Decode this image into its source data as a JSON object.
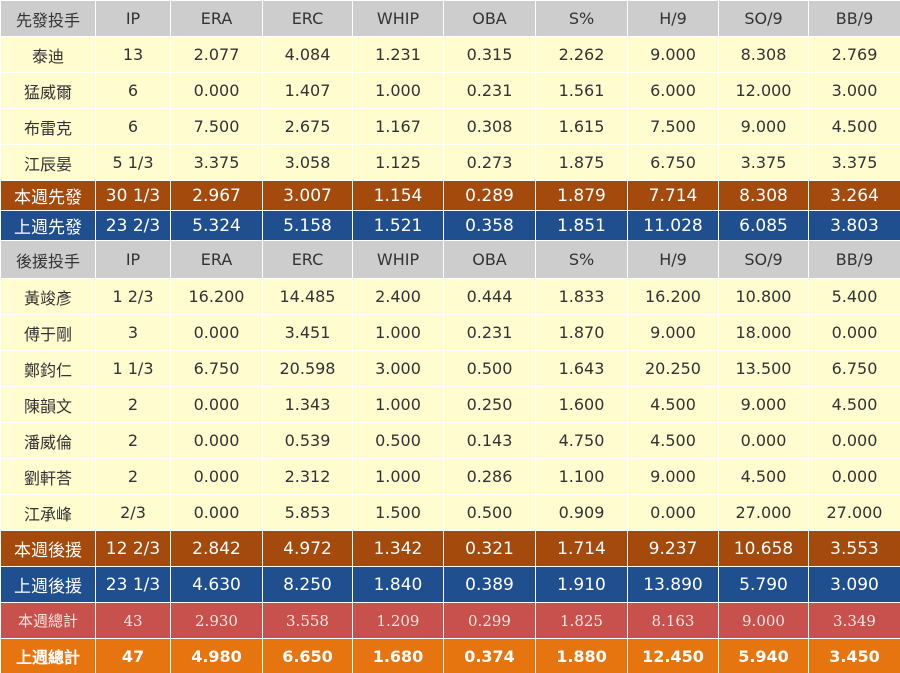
{
  "starters": {
    "header": [
      "先發投手",
      "IP",
      "ERA",
      "ERC",
      "WHIP",
      "OBA",
      "S%",
      "H/9",
      "SO/9",
      "BB/9"
    ],
    "rows": [
      [
        "泰迪",
        "13",
        "2.077",
        "4.084",
        "1.231",
        "0.315",
        "2.262",
        "9.000",
        "8.308",
        "2.769"
      ],
      [
        "猛威爾",
        "6",
        "0.000",
        "1.407",
        "1.000",
        "0.231",
        "1.561",
        "6.000",
        "12.000",
        "3.000"
      ],
      [
        "布雷克",
        "6",
        "7.500",
        "2.675",
        "1.167",
        "0.308",
        "1.615",
        "7.500",
        "9.000",
        "4.500"
      ],
      [
        "江辰晏",
        "5 1/3",
        "3.375",
        "3.058",
        "1.125",
        "0.273",
        "1.875",
        "6.750",
        "3.375",
        "3.375"
      ]
    ],
    "this_week": [
      "本週先發",
      "30 1/3",
      "2.967",
      "3.007",
      "1.154",
      "0.289",
      "1.879",
      "7.714",
      "8.308",
      "3.264"
    ],
    "last_week": [
      "上週先發",
      "23 2/3",
      "5.324",
      "5.158",
      "1.521",
      "0.358",
      "1.851",
      "11.028",
      "6.085",
      "3.803"
    ]
  },
  "relievers": {
    "header": [
      "後援投手",
      "IP",
      "ERA",
      "ERC",
      "WHIP",
      "OBA",
      "S%",
      "H/9",
      "SO/9",
      "BB/9"
    ],
    "rows": [
      [
        "黃竣彥",
        "1 2/3",
        "16.200",
        "14.485",
        "2.400",
        "0.444",
        "1.833",
        "16.200",
        "10.800",
        "5.400"
      ],
      [
        "傅于剛",
        "3",
        "0.000",
        "3.451",
        "1.000",
        "0.231",
        "1.870",
        "9.000",
        "18.000",
        "0.000"
      ],
      [
        "鄭鈞仁",
        "1 1/3",
        "6.750",
        "20.598",
        "3.000",
        "0.500",
        "1.643",
        "20.250",
        "13.500",
        "6.750"
      ],
      [
        "陳韻文",
        "2",
        "0.000",
        "1.343",
        "1.000",
        "0.250",
        "1.600",
        "4.500",
        "9.000",
        "4.500"
      ],
      [
        "潘威倫",
        "2",
        "0.000",
        "0.539",
        "0.500",
        "0.143",
        "4.750",
        "4.500",
        "0.000",
        "0.000"
      ],
      [
        "劉軒荅",
        "2",
        "0.000",
        "2.312",
        "1.000",
        "0.286",
        "1.100",
        "9.000",
        "4.500",
        "0.000"
      ],
      [
        "江承峰",
        "2/3",
        "0.000",
        "5.853",
        "1.500",
        "0.500",
        "0.909",
        "0.000",
        "27.000",
        "27.000"
      ]
    ],
    "this_week": [
      "本週後援",
      "12 2/3",
      "2.842",
      "4.972",
      "1.342",
      "0.321",
      "1.714",
      "9.237",
      "10.658",
      "3.553"
    ],
    "last_week": [
      "上週後援",
      "23 1/3",
      "4.630",
      "8.250",
      "1.840",
      "0.389",
      "1.910",
      "13.890",
      "5.790",
      "3.090"
    ]
  },
  "totals": {
    "this_week": [
      "本週總計",
      "43",
      "2.930",
      "3.558",
      "1.209",
      "0.299",
      "1.825",
      "8.163",
      "9.000",
      "3.349"
    ],
    "last_week": [
      "上週總計",
      "47",
      "4.980",
      "6.650",
      "1.680",
      "0.374",
      "1.880",
      "12.450",
      "5.940",
      "3.450"
    ]
  }
}
